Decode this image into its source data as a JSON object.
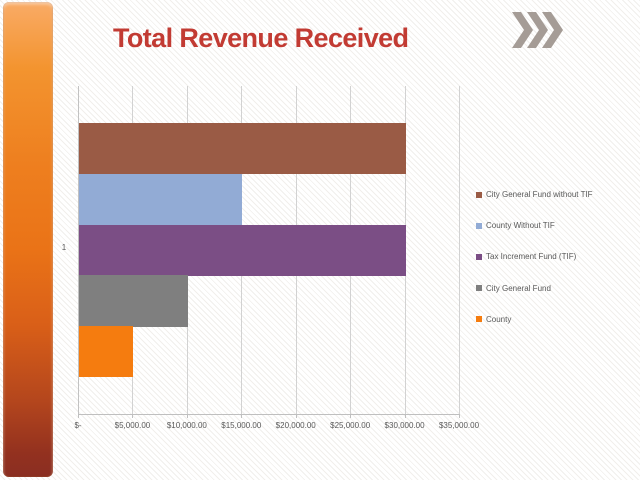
{
  "slide": {
    "title": "Total Revenue Received",
    "title_color": "#c23b33",
    "decoration": {
      "chevrons_color": "#a59c96"
    }
  },
  "chart_data": {
    "type": "bar",
    "orientation": "horizontal",
    "title": "Total Revenue Received",
    "categories": [
      "1"
    ],
    "series": [
      {
        "name": "City General Fund without TIF",
        "color": "#9a5b45",
        "values": [
          30000
        ]
      },
      {
        "name": "County Without TIF",
        "color": "#92abd5",
        "values": [
          15000
        ]
      },
      {
        "name": "Tax Increment Fund (TIF)",
        "color": "#7b4e85",
        "values": [
          30000
        ]
      },
      {
        "name": "City General Fund",
        "color": "#7f7f7f",
        "values": [
          10000
        ]
      },
      {
        "name": "County",
        "color": "#f57c0f",
        "values": [
          5000
        ]
      }
    ],
    "xlim": [
      0,
      35000
    ],
    "x_tick_step": 5000,
    "x_tick_labels": [
      "$-",
      "$5,000.00",
      "$10,000.00",
      "$15,000.00",
      "$20,000.00",
      "$25,000.00",
      "$30,000.00",
      "$35,000.00"
    ],
    "grid": "vertical",
    "legend_position": "right",
    "axis_text_color": "#595959"
  }
}
